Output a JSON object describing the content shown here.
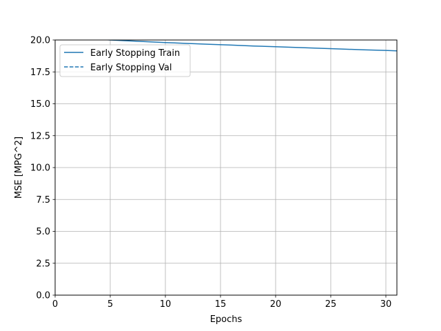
{
  "chart_data": {
    "type": "line",
    "xlabel": "Epochs",
    "ylabel": "MSE [MPG^2]",
    "xlim": [
      0,
      31
    ],
    "ylim": [
      0,
      20
    ],
    "xticks": [
      0,
      5,
      10,
      15,
      20,
      25,
      30
    ],
    "yticks": [
      0.0,
      2.5,
      5.0,
      7.5,
      10.0,
      12.5,
      15.0,
      17.5,
      20.0
    ],
    "xtick_labels": [
      "0",
      "5",
      "10",
      "15",
      "20",
      "25",
      "30"
    ],
    "ytick_labels": [
      "0.0",
      "2.5",
      "5.0",
      "7.5",
      "10.0",
      "12.5",
      "15.0",
      "17.5",
      "20.0"
    ],
    "grid": true,
    "legend_position": "top-left",
    "series": [
      {
        "name": "Early Stopping Train",
        "style": "solid",
        "color": "#1f77b4",
        "x": [
          0,
          2,
          4,
          5,
          6,
          8,
          10,
          12,
          14,
          16,
          18,
          20,
          22,
          24,
          26,
          28,
          30,
          31
        ],
        "y": [
          20.25,
          20.15,
          20.05,
          20.0,
          19.96,
          19.88,
          19.8,
          19.73,
          19.66,
          19.6,
          19.53,
          19.47,
          19.41,
          19.35,
          19.29,
          19.23,
          19.18,
          19.15
        ]
      },
      {
        "name": "Early Stopping Val",
        "style": "dashed",
        "color": "#1f77b4",
        "x": [],
        "y": []
      }
    ]
  }
}
